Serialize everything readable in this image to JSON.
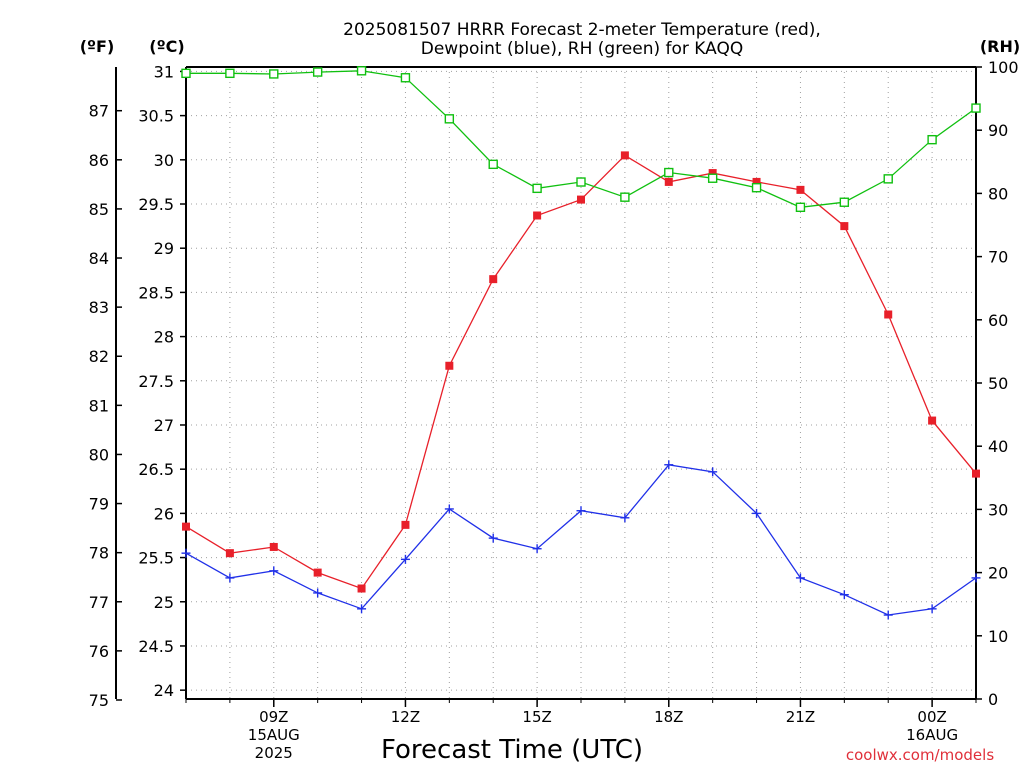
{
  "title_line1": "2025081507 HRRR Forecast 2-meter Temperature (red),",
  "title_line2": "Dewpoint (blue), RH (green) for KAQQ",
  "unit_f": "(ºF)",
  "unit_c": "(ºC)",
  "unit_rh": "(RH)",
  "xlabel": "Forecast Time (UTC)",
  "credit": "coolwx.com/models",
  "colors": {
    "temp": "#e8202a",
    "dew": "#2030e8",
    "rh": "#10c010",
    "grid": "#a0a0a0"
  },
  "chart_data": {
    "type": "line",
    "title": "2025081507 HRRR Forecast 2-meter Temperature (red), Dewpoint (blue), RH (green) for KAQQ",
    "xlabel": "Forecast Time (UTC)",
    "x_hours": [
      7,
      8,
      9,
      10,
      11,
      12,
      13,
      14,
      15,
      16,
      17,
      18,
      19,
      20,
      21,
      22,
      23,
      24,
      25
    ],
    "x_range": [
      7,
      25
    ],
    "x_ticks": [
      {
        "hour": 9,
        "label": "09Z",
        "sub1": "15AUG",
        "sub2": "2025"
      },
      {
        "hour": 12,
        "label": "12Z",
        "sub1": "",
        "sub2": ""
      },
      {
        "hour": 15,
        "label": "15Z",
        "sub1": "",
        "sub2": ""
      },
      {
        "hour": 18,
        "label": "18Z",
        "sub1": "",
        "sub2": ""
      },
      {
        "hour": 21,
        "label": "21Z",
        "sub1": "",
        "sub2": ""
      },
      {
        "hour": 24,
        "label": "00Z",
        "sub1": "16AUG",
        "sub2": ""
      }
    ],
    "y_c_range": [
      23.9,
      31.05
    ],
    "y_c_ticks": [
      "24",
      "24.5",
      "25",
      "25.5",
      "26",
      "26.5",
      "27",
      "27.5",
      "28",
      "28.5",
      "29",
      "29.5",
      "30",
      "30.5",
      "31"
    ],
    "y_f_ticks": [
      "75",
      "76",
      "77",
      "78",
      "79",
      "80",
      "81",
      "82",
      "83",
      "84",
      "85",
      "86",
      "87"
    ],
    "y_rh_range": [
      0,
      100
    ],
    "y_rh_ticks": [
      "0",
      "10",
      "20",
      "30",
      "40",
      "50",
      "60",
      "70",
      "80",
      "90",
      "100"
    ],
    "grid": true,
    "series": [
      {
        "name": "Temperature",
        "key": "temp",
        "marker": "square-filled",
        "values": [
          25.85,
          25.55,
          25.62,
          25.33,
          25.15,
          25.87,
          27.67,
          28.65,
          29.37,
          29.55,
          30.05,
          29.75,
          29.85,
          29.75,
          29.66,
          29.25,
          28.25,
          27.05,
          26.45
        ]
      },
      {
        "name": "Dewpoint",
        "key": "dew",
        "marker": "plus",
        "values": [
          25.55,
          25.27,
          25.35,
          25.1,
          24.92,
          25.48,
          26.05,
          25.72,
          25.6,
          26.03,
          25.95,
          26.55,
          26.47,
          26.0,
          25.27,
          25.08,
          24.85,
          24.92,
          25.27
        ]
      },
      {
        "name": "RH",
        "key": "rh",
        "marker": "square-open",
        "values": [
          99,
          99,
          98.9,
          99.2,
          99.4,
          98.3,
          91.8,
          84.6,
          80.8,
          81.8,
          79.4,
          83.3,
          82.4,
          80.9,
          77.8,
          78.6,
          82.3,
          88.5,
          93.5
        ]
      }
    ]
  }
}
